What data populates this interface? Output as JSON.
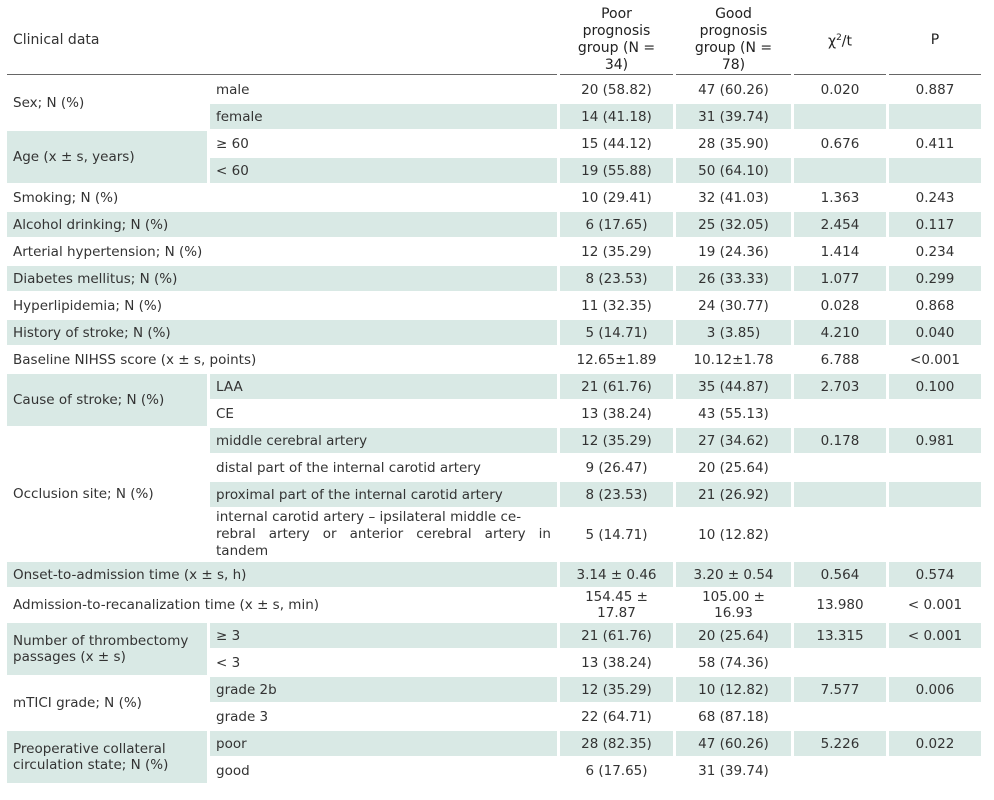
{
  "header": {
    "clinical": "Clinical data",
    "poor_line1": "Poor prognosis",
    "poor_line2": "group (N = 34)",
    "good_line1": "Good prognosis",
    "good_line2": "group (N = 78)",
    "chi_base": "χ",
    "chi_sup": "2",
    "chi_rest": "/t",
    "p": "P"
  },
  "rows": {
    "sex": "Sex; N (%)",
    "sex_male": "male",
    "sex_male_poor": "20 (58.82)",
    "sex_male_good": "47 (60.26)",
    "sex_chi": "0.020",
    "sex_p": "0.887",
    "sex_female": "female",
    "sex_female_poor": "14 (41.18)",
    "sex_female_good": "31 (39.74)",
    "age": "Age (x ± s, years)",
    "age_ge60": "≥ 60",
    "age_ge60_poor": "15 (44.12)",
    "age_ge60_good": "28 (35.90)",
    "age_chi": "0.676",
    "age_p": "0.411",
    "age_lt60": "< 60",
    "age_lt60_poor": "19 (55.88)",
    "age_lt60_good": "50 (64.10)",
    "smoking": "Smoking; N (%)",
    "smoking_poor": "10 (29.41)",
    "smoking_good": "32 (41.03)",
    "smoking_chi": "1.363",
    "smoking_p": "0.243",
    "alcohol": "Alcohol drinking; N (%)",
    "alcohol_poor": "6 (17.65)",
    "alcohol_good": "25 (32.05)",
    "alcohol_chi": "2.454",
    "alcohol_p": "0.117",
    "hypertension": "Arterial hypertension; N (%)",
    "hypertension_poor": "12 (35.29)",
    "hypertension_good": "19 (24.36)",
    "hypertension_chi": "1.414",
    "hypertension_p": "0.234",
    "diabetes": "Diabetes mellitus; N (%)",
    "diabetes_poor": "8 (23.53)",
    "diabetes_good": "26 (33.33)",
    "diabetes_chi": "1.077",
    "diabetes_p": "0.299",
    "hyperlipidemia": "Hyperlipidemia; N (%)",
    "hyperlipidemia_poor": "11 (32.35)",
    "hyperlipidemia_good": "24 (30.77)",
    "hyperlipidemia_chi": "0.028",
    "hyperlipidemia_p": "0.868",
    "stroke_history": "History of stroke; N (%)",
    "stroke_history_poor": "5 (14.71)",
    "stroke_history_good": "3 (3.85)",
    "stroke_history_chi": "4.210",
    "stroke_history_p": "0.040",
    "nihss": "Baseline NIHSS score (x ± s, points)",
    "nihss_poor": "12.65±1.89",
    "nihss_good": "10.12±1.78",
    "nihss_chi": "6.788",
    "nihss_p": "<0.001",
    "cause": "Cause of stroke; N (%)",
    "cause_laa": "LAA",
    "cause_laa_poor": "21 (61.76)",
    "cause_laa_good": "35 (44.87)",
    "cause_chi": "2.703",
    "cause_p": "0.100",
    "cause_ce": "CE",
    "cause_ce_poor": "13 (38.24)",
    "cause_ce_good": "43 (55.13)",
    "occlusion": "Occlusion site; N (%)",
    "occ_mca": "middle cerebral artery",
    "occ_mca_poor": "12 (35.29)",
    "occ_mca_good": "27 (34.62)",
    "occ_chi": "0.178",
    "occ_p": "0.981",
    "occ_distal": "distal part of the internal carotid artery",
    "occ_distal_poor": "9 (26.47)",
    "occ_distal_good": "20 (25.64)",
    "occ_proximal": "proximal part of the internal carotid artery",
    "occ_proximal_poor": "8 (23.53)",
    "occ_proximal_good": "21 (26.92)",
    "occ_tandem_l1": "internal carotid artery – ipsilateral middle ce-",
    "occ_tandem_l2": "rebral artery or anterior cerebral artery in tandem",
    "occ_tandem_poor": "5 (14.71)",
    "occ_tandem_good": "10 (12.82)",
    "onset": "Onset-to-admission time (x ± s, h)",
    "onset_poor": "3.14 ± 0.46",
    "onset_good": "3.20 ± 0.54",
    "onset_chi": "0.564",
    "onset_p": "0.574",
    "recanal": "Admission-to-recanalization time (x ± s, min)",
    "recanal_poor": "154.45 ± 17.87",
    "recanal_good": "105.00 ± 16.93",
    "recanal_chi": "13.980",
    "recanal_p": "< 0.001",
    "passages_l1": "Number of thrombectomy",
    "passages_l2": "passages (x ± s)",
    "pass_ge3": "≥ 3",
    "pass_ge3_poor": "21 (61.76)",
    "pass_ge3_good": "20 (25.64)",
    "pass_chi": "13.315",
    "pass_p": "< 0.001",
    "pass_lt3": "< 3",
    "pass_lt3_poor": "13 (38.24)",
    "pass_lt3_good": "58 (74.36)",
    "mtici": "mTICI grade; N (%)",
    "mtici_2b": "grade 2b",
    "mtici_2b_poor": "12 (35.29)",
    "mtici_2b_good": "10 (12.82)",
    "mtici_chi": "7.577",
    "mtici_p": "0.006",
    "mtici_3": "grade 3",
    "mtici_3_poor": "22 (64.71)",
    "mtici_3_good": "68 (87.18)",
    "collateral_l1": "Preoperative collateral",
    "collateral_l2": "circulation state; N (%)",
    "coll_poor": "poor",
    "coll_poor_poor": "28 (82.35)",
    "coll_poor_good": "47 (60.26)",
    "coll_chi": "5.226",
    "coll_p": "0.022",
    "coll_good": "good",
    "coll_good_poor": "6 (17.65)",
    "coll_good_good": "31 (39.74)"
  }
}
